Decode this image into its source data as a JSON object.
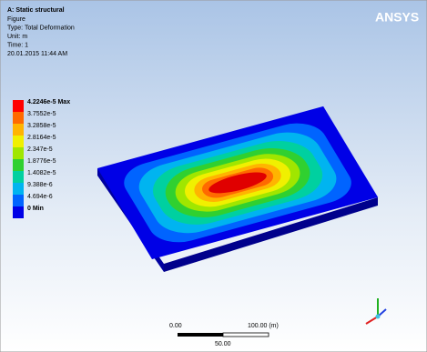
{
  "header": {
    "title": "A: Static structural",
    "lines": [
      "Figure",
      "Type: Total Deformation",
      "Unit: m",
      "Time: 1",
      "20.01.2015 11:44 AM"
    ]
  },
  "legend": {
    "labels": [
      "4.2246e-5 Max",
      "3.7552e-5",
      "3.2858e-5",
      "2.8164e-5",
      "2.347e-5",
      "1.8776e-5",
      "1.4082e-5",
      "9.388e-6",
      "4.694e-6",
      "0 Min"
    ]
  },
  "logo": "ANSYS",
  "scale_bar": {
    "start": "0.00",
    "end": "100.00 (m)",
    "middle": "50.00"
  }
}
